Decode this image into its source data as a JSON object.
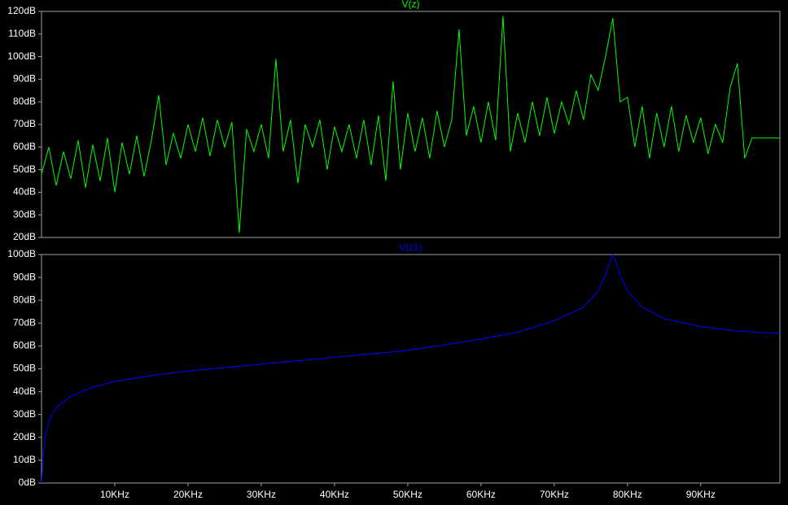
{
  "chart_data": [
    {
      "type": "line",
      "title": "V(z)",
      "color": "#00ff00",
      "xlim": [
        0,
        100800
      ],
      "ylim": [
        20,
        120
      ],
      "yticks": [
        {
          "value": 20,
          "label": "20dB"
        },
        {
          "value": 30,
          "label": "30dB"
        },
        {
          "value": 40,
          "label": "40dB"
        },
        {
          "value": 50,
          "label": "50dB"
        },
        {
          "value": 60,
          "label": "60dB"
        },
        {
          "value": 70,
          "label": "70dB"
        },
        {
          "value": 80,
          "label": "80dB"
        },
        {
          "value": 90,
          "label": "90dB"
        },
        {
          "value": 100,
          "label": "100dB"
        },
        {
          "value": 110,
          "label": "110dB"
        },
        {
          "value": 120,
          "label": "120dB"
        }
      ],
      "x": [
        0,
        1000,
        2000,
        3000,
        4000,
        5000,
        6000,
        7000,
        8000,
        9000,
        10000,
        11000,
        12000,
        13000,
        14000,
        15000,
        16000,
        17000,
        18000,
        19000,
        20000,
        21000,
        22000,
        23000,
        24000,
        25000,
        26000,
        27000,
        28000,
        29000,
        30000,
        31000,
        32000,
        33000,
        34000,
        35000,
        36000,
        37000,
        38000,
        39000,
        40000,
        41000,
        42000,
        43000,
        44000,
        45000,
        46000,
        47000,
        48000,
        49000,
        50000,
        51000,
        52000,
        53000,
        54000,
        55000,
        56000,
        57000,
        58000,
        59000,
        60000,
        61000,
        62000,
        63000,
        64000,
        65000,
        66000,
        67000,
        68000,
        69000,
        70000,
        71000,
        72000,
        73000,
        74000,
        75000,
        76000,
        77000,
        78000,
        79000,
        80000,
        81000,
        82000,
        83000,
        84000,
        85000,
        86000,
        87000,
        88000,
        89000,
        90000,
        91000,
        92000,
        93000,
        94000,
        95000,
        96000,
        97000,
        100800
      ],
      "values": [
        48,
        60,
        43,
        58,
        46,
        63,
        42,
        61,
        45,
        64,
        40,
        62,
        48,
        65,
        47,
        63,
        83,
        52,
        66,
        55,
        70,
        58,
        73,
        56,
        72,
        60,
        71,
        22,
        68,
        58,
        70,
        55,
        99,
        58,
        72,
        44,
        70,
        60,
        72,
        50,
        69,
        58,
        70,
        55,
        72,
        52,
        74,
        45,
        89,
        50,
        75,
        58,
        73,
        55,
        76,
        60,
        72,
        112,
        65,
        78,
        62,
        80,
        63,
        118,
        58,
        75,
        62,
        80,
        65,
        82,
        66,
        80,
        70,
        85,
        72,
        92,
        85,
        100,
        117,
        80,
        82,
        60,
        78,
        55,
        75,
        60,
        78,
        58,
        74,
        62,
        73,
        57,
        70,
        62,
        86,
        97,
        55,
        64,
        64
      ]
    },
    {
      "type": "line",
      "title": "V(z1)",
      "color": "#0000ff",
      "xlim": [
        0,
        100800
      ],
      "ylim": [
        0,
        100
      ],
      "yticks": [
        {
          "value": 0,
          "label": "0dB"
        },
        {
          "value": 10,
          "label": "10dB"
        },
        {
          "value": 20,
          "label": "20dB"
        },
        {
          "value": 30,
          "label": "30dB"
        },
        {
          "value": 40,
          "label": "40dB"
        },
        {
          "value": 50,
          "label": "50dB"
        },
        {
          "value": 60,
          "label": "60dB"
        },
        {
          "value": 70,
          "label": "70dB"
        },
        {
          "value": 80,
          "label": "80dB"
        },
        {
          "value": 90,
          "label": "90dB"
        },
        {
          "value": 100,
          "label": "100dB"
        }
      ],
      "xticks": [
        {
          "value": 10000,
          "label": "10KHz"
        },
        {
          "value": 20000,
          "label": "20KHz"
        },
        {
          "value": 30000,
          "label": "30KHz"
        },
        {
          "value": 40000,
          "label": "40KHz"
        },
        {
          "value": 50000,
          "label": "50KHz"
        },
        {
          "value": 60000,
          "label": "60KHz"
        },
        {
          "value": 70000,
          "label": "70KHz"
        },
        {
          "value": 80000,
          "label": "80KHz"
        },
        {
          "value": 90000,
          "label": "90KHz"
        }
      ],
      "x": [
        0,
        200,
        500,
        1000,
        2000,
        4000,
        7000,
        10000,
        15000,
        20000,
        30000,
        40000,
        50000,
        60000,
        65000,
        70000,
        74000,
        76000,
        77000,
        77500,
        78000,
        78500,
        79000,
        80000,
        82000,
        85000,
        90000,
        95000,
        100800
      ],
      "values": [
        0,
        10,
        20,
        27,
        33,
        38,
        42,
        44.5,
        47,
        49,
        52,
        55,
        58,
        63,
        66,
        71,
        77,
        84,
        91,
        96,
        100,
        96,
        91,
        84,
        77,
        72,
        68.5,
        66.5,
        65.5
      ]
    }
  ]
}
